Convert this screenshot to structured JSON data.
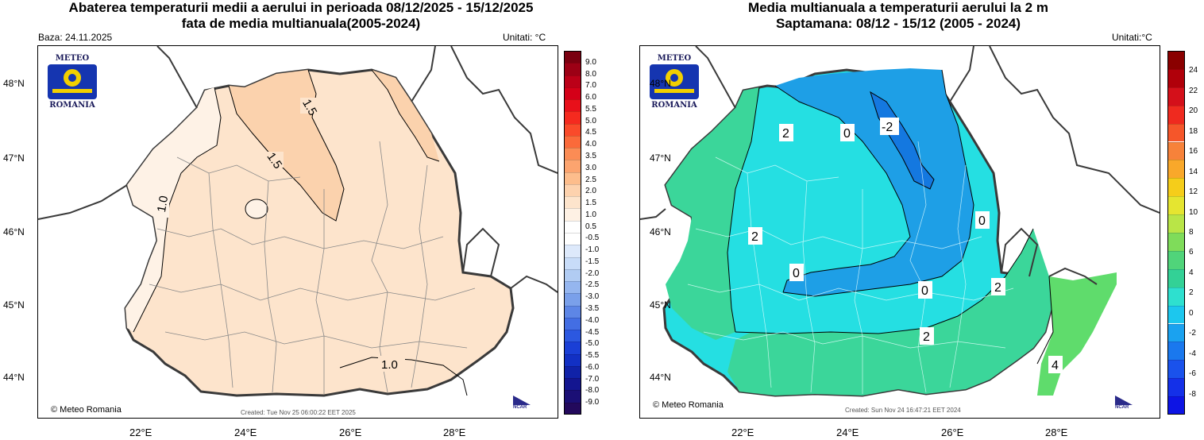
{
  "left": {
    "title1": "Abaterea temperaturii medii a aerului in perioada 08/12/2025 - 15/12/2025",
    "title2": "fata de media multianuala(2005-2024)",
    "baza": "Baza: 24.11.2025",
    "unitati": "Unitati: °C",
    "created": "Created: Tue Nov 25 06:00:22 EET 2025",
    "copyright": "© Meteo Romania",
    "contour_labels": [
      "1.5",
      "1.5",
      "1.0",
      "1.0"
    ],
    "colorbar_labels": [
      "9.0",
      "8.0",
      "7.0",
      "6.0",
      "5.5",
      "5.0",
      "4.5",
      "4.0",
      "3.5",
      "3.0",
      "2.5",
      "2.0",
      "1.5",
      "1.0",
      "0.5",
      "-0.5",
      "-1.0",
      "-1.5",
      "-2.0",
      "-2.5",
      "-3.0",
      "-3.5",
      "-4.0",
      "-4.5",
      "-5.0",
      "-5.5",
      "-6.0",
      "-7.0",
      "-8.0",
      "-9.0"
    ],
    "colorbar_colors": [
      "#7a0010",
      "#9c0015",
      "#bb0018",
      "#d40018",
      "#e8101a",
      "#f52a1f",
      "#fa4a2a",
      "#fb6a3a",
      "#fb8c55",
      "#fca46f",
      "#fdbd8c",
      "#fdd2ae",
      "#fde4cc",
      "#fef1e4",
      "#ffffff",
      "#ffffff",
      "#dde9fb",
      "#c8dcf8",
      "#b1ccf3",
      "#95b6ef",
      "#7aa0ea",
      "#5d86e6",
      "#436ee3",
      "#2c58e0",
      "#1a3fd6",
      "#1230c4",
      "#1022a8",
      "#131590",
      "#1b0f75",
      "#23095c"
    ],
    "fill_main": "#fde4cc",
    "fill_warm": "#fbd2ad",
    "fill_cool": "#fef2e6"
  },
  "right": {
    "title1": "Media multianuala a temperaturii aerului la 2 m",
    "title2": "Saptamana: 08/12 - 15/12 (2005 - 2024)",
    "unitati": "Unitati:°C",
    "created": "Created: Sun Nov 24 16:47:21 EET 2024",
    "copyright": "© Meteo Romania",
    "contour_labels": [
      "2",
      "0",
      "-2",
      "0",
      "2",
      "0",
      "0",
      "2",
      "2",
      "4"
    ],
    "colorbar_labels": [
      "24",
      "22",
      "20",
      "18",
      "16",
      "14",
      "12",
      "10",
      "8",
      "6",
      "4",
      "2",
      "0",
      "-2",
      "-4",
      "-6",
      "-8"
    ],
    "colorbar_colors": [
      "#8a0000",
      "#b0000a",
      "#d4101a",
      "#ef2a1f",
      "#f5562a",
      "#f7823a",
      "#f9a82a",
      "#f5cd1a",
      "#e5e530",
      "#b9e547",
      "#7fdc5a",
      "#50d47a",
      "#33d196",
      "#2ee0cf",
      "#1cc7ee",
      "#1aa2f0",
      "#1a78ee",
      "#1a52ec",
      "#1430e8",
      "#0d14e4"
    ],
    "fill_low": "#1e9fe6",
    "fill_lower": "#1478e0",
    "fill_mid": "#25dfe2",
    "fill_high": "#3bd69a",
    "fill_higher": "#5fdc6c"
  },
  "axes": {
    "lon_labels": [
      "22°E",
      "24°E",
      "26°E",
      "28°E"
    ],
    "lat_labels": [
      "48°N",
      "47°N",
      "46°N",
      "45°N",
      "44°N"
    ]
  },
  "logo": {
    "top_text": "METEO",
    "bottom_text": "ROMANIA"
  },
  "ncar_text": "NCAR"
}
